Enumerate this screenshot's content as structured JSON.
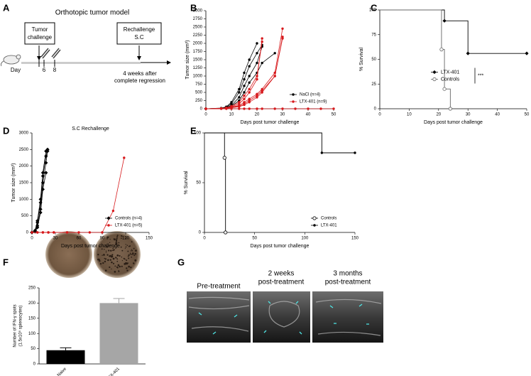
{
  "panel_labels": [
    "A",
    "B",
    "C",
    "D",
    "E",
    "F",
    "G"
  ],
  "diagram": {
    "title": "Orthotopic tumor model",
    "boxes": [
      [
        "Tumor",
        "challenge"
      ],
      [
        "Rechallenge",
        "S.C"
      ]
    ],
    "timeline_labels": [
      "Day",
      "6",
      "8"
    ],
    "note": [
      "4 weeks after",
      "complete regression"
    ]
  },
  "ultrasound": {
    "labels": [
      [
        "Pre-treatment"
      ],
      [
        "2 weeks",
        "post-treatment"
      ],
      [
        "3 months",
        "post-treatment"
      ]
    ]
  },
  "chart_data": [
    {
      "type": "line",
      "ylabel": "Tumor size (mm³)",
      "xlabel": "Days post tumor challenge",
      "xlim": [
        0,
        50
      ],
      "xticks": [
        0,
        10,
        20,
        30,
        40,
        50
      ],
      "ylim": [
        0,
        3000
      ],
      "yticks": [
        0,
        250,
        500,
        750,
        1000,
        1250,
        1500,
        1750,
        2000,
        2250,
        2500,
        2750,
        3000
      ],
      "legend": "lower right",
      "series": [
        {
          "name": "NaCl (n=4)",
          "color": "#000000",
          "marker": "circle",
          "lines": [
            {
              "x": [
                0,
                6,
                8,
                10,
                13,
                15,
                17,
                20,
                22
              ],
              "values": [
                0,
                20,
                50,
                150,
                500,
                900,
                1300,
                1700,
                1950
              ]
            },
            {
              "x": [
                0,
                6,
                8,
                10,
                13,
                15,
                17,
                20,
                22
              ],
              "values": [
                0,
                10,
                40,
                100,
                350,
                700,
                1000,
                1400,
                1900
              ]
            },
            {
              "x": [
                0,
                6,
                8,
                10,
                13,
                15,
                17,
                20,
                22,
                27
              ],
              "values": [
                0,
                10,
                30,
                80,
                250,
                500,
                800,
                1100,
                1400,
                1700
              ]
            },
            {
              "x": [
                0,
                6,
                8,
                10,
                13,
                15,
                17,
                20
              ],
              "values": [
                0,
                15,
                60,
                200,
                600,
                1100,
                1500,
                2000
              ]
            }
          ]
        },
        {
          "name": "LTX-401 (n=9)",
          "color": "#d7191c",
          "marker": "circle",
          "lines": [
            {
              "x": [
                0,
                6,
                8,
                10,
                13,
                15,
                17,
                20,
                22
              ],
              "values": [
                0,
                10,
                20,
                60,
                150,
                300,
                500,
                900,
                2150
              ]
            },
            {
              "x": [
                0,
                6,
                8,
                10,
                13,
                15,
                17,
                20,
                22
              ],
              "values": [
                0,
                10,
                30,
                80,
                200,
                400,
                600,
                1000,
                2050
              ]
            },
            {
              "x": [
                0,
                6,
                8,
                10,
                13,
                15,
                17,
                20,
                22,
                27,
                30
              ],
              "values": [
                0,
                10,
                20,
                50,
                100,
                200,
                300,
                450,
                600,
                1100,
                2450
              ]
            },
            {
              "x": [
                0,
                6,
                8,
                10,
                13,
                15,
                17,
                20,
                22,
                27,
                30
              ],
              "values": [
                0,
                5,
                15,
                40,
                80,
                150,
                250,
                400,
                550,
                1000,
                2150
              ]
            },
            {
              "x": [
                0,
                6,
                8,
                10,
                13,
                15,
                17,
                20,
                22,
                27,
                30
              ],
              "values": [
                0,
                5,
                10,
                30,
                60,
                120,
                200,
                350,
                500,
                1000,
                2200
              ]
            },
            {
              "x": [
                0,
                6,
                8,
                10,
                13,
                15,
                17,
                20,
                22,
                27,
                30,
                35,
                40,
                45,
                50
              ],
              "values": [
                0,
                0,
                0,
                0,
                0,
                0,
                0,
                0,
                0,
                0,
                0,
                0,
                0,
                0,
                0
              ]
            }
          ]
        }
      ]
    },
    {
      "type": "survival",
      "ylabel": "% Survival",
      "xlabel": "Days post tumor challenge",
      "xlim": [
        0,
        50
      ],
      "xticks": [
        0,
        10,
        20,
        30,
        40,
        50
      ],
      "ylim": [
        0,
        100
      ],
      "yticks": [
        0,
        25,
        50,
        75,
        100
      ],
      "legend": "center right",
      "annotation": "***",
      "series": [
        {
          "name": "LTX-401",
          "color": "#000000",
          "marker": "diamond",
          "x": [
            0,
            22,
            30,
            50
          ],
          "values": [
            100,
            89,
            56,
            56
          ]
        },
        {
          "name": "Controls",
          "color": "#666666",
          "marker": "open-circle",
          "x": [
            0,
            21,
            22,
            24
          ],
          "values": [
            100,
            60,
            20,
            0
          ]
        }
      ]
    },
    {
      "type": "line",
      "title": "S.C Rechallenge",
      "ylabel": "Tumor size (mm³)",
      "xlabel": "Days post tumor challenge",
      "xlim": [
        0,
        150
      ],
      "xticks": [
        0,
        30,
        60,
        90,
        120,
        150
      ],
      "ylim": [
        0,
        3000
      ],
      "yticks": [
        0,
        500,
        1000,
        1500,
        2000,
        2500,
        3000
      ],
      "legend": "lower right",
      "series": [
        {
          "name": "Controls (n=4)",
          "color": "#000000",
          "marker": "diamond",
          "lines": [
            {
              "x": [
                0,
                4,
                7,
                11,
                14,
                18,
                20
              ],
              "values": [
                0,
                50,
                300,
                900,
                1700,
                2300,
                2500
              ]
            },
            {
              "x": [
                0,
                4,
                7,
                11,
                14,
                18,
                20
              ],
              "values": [
                0,
                30,
                200,
                700,
                1500,
                2100,
                2450
              ]
            },
            {
              "x": [
                0,
                4,
                7,
                11,
                14,
                18
              ],
              "values": [
                0,
                20,
                150,
                600,
                1300,
                1800
              ]
            },
            {
              "x": [
                0,
                4,
                7,
                11,
                14,
                18,
                20
              ],
              "values": [
                0,
                60,
                350,
                1000,
                1800,
                2450,
                2500
              ]
            }
          ]
        },
        {
          "name": "LTX-401 (n=5)",
          "color": "#d7191c",
          "marker": "circle",
          "lines": [
            {
              "x": [
                0,
                7,
                14,
                21,
                28,
                74,
                90,
                104,
                118
              ],
              "values": [
                0,
                0,
                0,
                0,
                0,
                0,
                0,
                650,
                2250
              ]
            },
            {
              "x": [
                0,
                7,
                14,
                21,
                28,
                45,
                60
              ],
              "values": [
                0,
                0,
                0,
                0,
                0,
                0,
                0
              ]
            }
          ]
        }
      ]
    },
    {
      "type": "survival",
      "ylabel": "% Survival",
      "xlabel": "Days post tumor challenge",
      "xlim": [
        0,
        150
      ],
      "xticks": [
        0,
        50,
        100,
        150
      ],
      "ylim": [
        0,
        100
      ],
      "yticks": [
        0,
        50,
        100
      ],
      "legend": "lower right",
      "series": [
        {
          "name": "Controls",
          "color": "#000000",
          "marker": "open-circle",
          "x": [
            0,
            20,
            21
          ],
          "values": [
            100,
            75,
            0
          ]
        },
        {
          "name": "LTX-401",
          "color": "#000000",
          "marker": "circle",
          "x": [
            0,
            117,
            150
          ],
          "values": [
            100,
            80,
            80
          ]
        }
      ]
    },
    {
      "type": "bar",
      "ylabel": [
        "Number of IFN-γ spots",
        "(1.5x10⁵ splenocytes)"
      ],
      "categories": [
        "Naive",
        "LTX-401"
      ],
      "values": [
        45,
        200
      ],
      "errors": [
        8,
        15
      ],
      "colors": [
        "#000000",
        "#a6a6a6"
      ],
      "ylim": [
        0,
        250
      ],
      "yticks": [
        0,
        50,
        100,
        150,
        200,
        250
      ]
    }
  ]
}
